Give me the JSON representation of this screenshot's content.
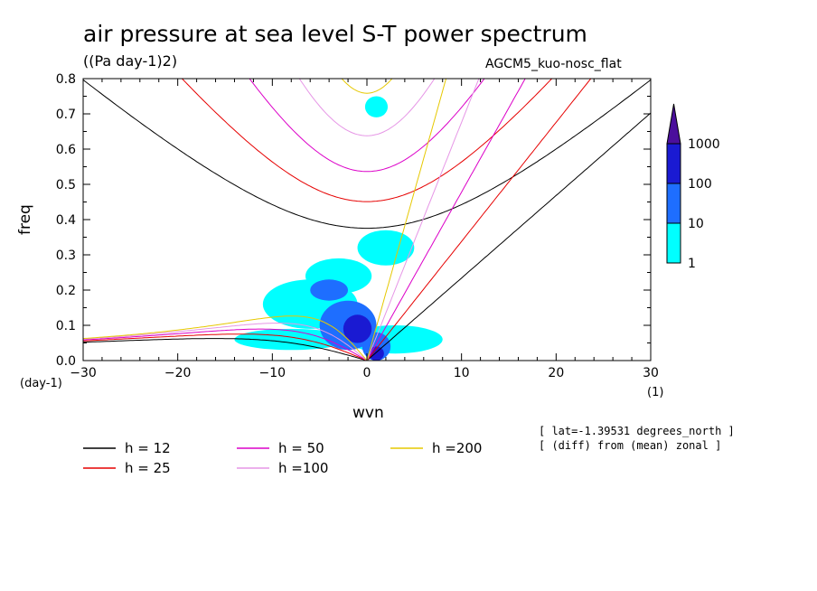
{
  "chart_data": {
    "type": "heatmap",
    "title": "air pressure at sea level S-T power spectrum",
    "units": "((Pa day-1)2)",
    "model": "AGCM5_kuo-nosc_flat",
    "xlabel": "wvn",
    "ylabel": "freq",
    "x_unit": "(1)",
    "y_unit": "(day-1)",
    "xlim": [
      -30,
      30
    ],
    "ylim": [
      0,
      0.8
    ],
    "x_ticks": [
      -30,
      -20,
      -10,
      0,
      10,
      20,
      30
    ],
    "x_tick_labels": [
      "−30",
      "−20",
      "−10",
      "0",
      "10",
      "20",
      "30"
    ],
    "y_ticks": [
      0,
      0.1,
      0.2,
      0.3,
      0.4,
      0.5,
      0.6,
      0.7,
      0.8
    ],
    "y_tick_labels": [
      "0.0",
      "0.1",
      "0.2",
      "0.3",
      "0.4",
      "0.5",
      "0.6",
      "0.7",
      "0.8"
    ],
    "colorbar": {
      "levels": [
        "1",
        "10",
        "100",
        "1000"
      ],
      "colors": [
        "#00ffff",
        "#1e6eff",
        "#1a1ad2",
        "#4b0f9c"
      ]
    },
    "dispersion_curves": [
      {
        "name": "h = 12",
        "h": 12,
        "color": "#000000"
      },
      {
        "name": "h = 25",
        "h": 25,
        "color": "#e60000"
      },
      {
        "name": "h = 50",
        "h": 50,
        "color": "#dc00c8"
      },
      {
        "name": "h =100",
        "h": 100,
        "color": "#e696e6"
      },
      {
        "name": "h =200",
        "h": 200,
        "color": "#e6c800"
      }
    ],
    "power_regions": [
      {
        "wvn": -6,
        "freq": 0.16,
        "rx": 5,
        "ry": 0.07,
        "level": 0
      },
      {
        "wvn": -3,
        "freq": 0.24,
        "rx": 3.5,
        "ry": 0.05,
        "level": 0
      },
      {
        "wvn": -8,
        "freq": 0.06,
        "rx": 6,
        "ry": 0.03,
        "level": 0
      },
      {
        "wvn": 3,
        "freq": 0.06,
        "rx": 5,
        "ry": 0.04,
        "level": 0
      },
      {
        "wvn": 2,
        "freq": 0.32,
        "rx": 3,
        "ry": 0.05,
        "level": 0
      },
      {
        "wvn": 1,
        "freq": 0.72,
        "rx": 1.2,
        "ry": 0.03,
        "level": 0
      },
      {
        "wvn": -2,
        "freq": 0.1,
        "rx": 3,
        "ry": 0.07,
        "level": 1
      },
      {
        "wvn": -4,
        "freq": 0.2,
        "rx": 2,
        "ry": 0.03,
        "level": 1
      },
      {
        "wvn": 1,
        "freq": 0.04,
        "rx": 1.5,
        "ry": 0.04,
        "level": 1
      },
      {
        "wvn": -1,
        "freq": 0.09,
        "rx": 1.5,
        "ry": 0.04,
        "level": 2
      },
      {
        "wvn": 1,
        "freq": 0.02,
        "rx": 0.8,
        "ry": 0.02,
        "level": 2
      }
    ]
  },
  "legend": [
    {
      "label": "h = 12",
      "color": "#000000"
    },
    {
      "label": "h = 25",
      "color": "#e60000"
    },
    {
      "label": "h = 50",
      "color": "#dc00c8"
    },
    {
      "label": "h =100",
      "color": "#e696e6"
    },
    {
      "label": "h =200",
      "color": "#e6c800"
    }
  ],
  "notes": {
    "lat": "[ lat=-1.39531 degrees_north ]",
    "diff": "[ (diff) from (mean) zonal ]"
  }
}
